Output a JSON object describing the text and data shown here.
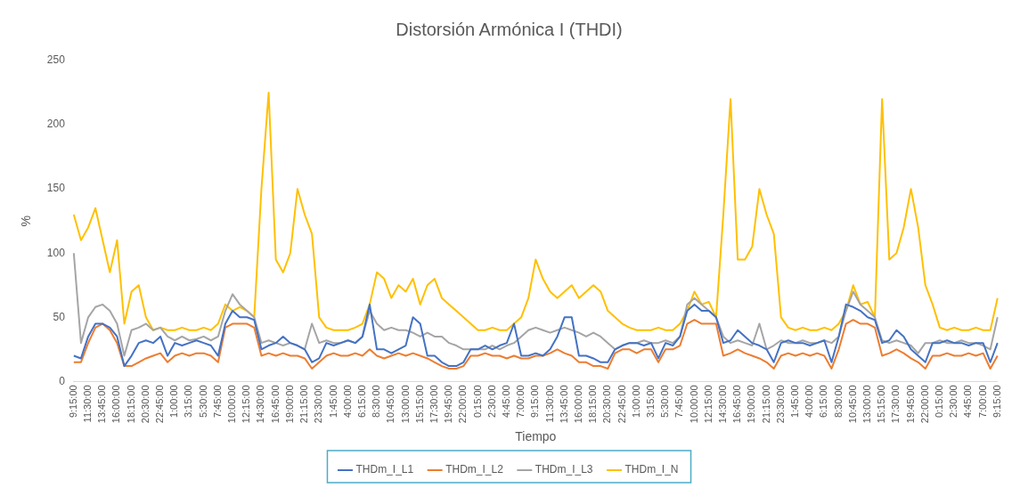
{
  "chart_data": {
    "type": "line",
    "title": "Distorsión Armónica I (THDI)",
    "xlabel": "Tiempo",
    "ylabel": "%",
    "categories": [
      "9:15:00",
      null,
      "11:30:00",
      null,
      "13:45:00",
      null,
      "16:00:00",
      null,
      "18:15:00",
      null,
      "20:30:00",
      null,
      "22:45:00",
      null,
      "1:00:00",
      null,
      "3:15:00",
      null,
      "5:30:00",
      null,
      "7:45:00",
      null,
      "10:00:00",
      null,
      "12:15:00",
      null,
      "14:30:00",
      null,
      "16:45:00",
      null,
      "19:00:00",
      null,
      "21:15:00",
      null,
      "23:30:00",
      null,
      "1:45:00",
      null,
      "4:00:00",
      null,
      "6:15:00",
      null,
      "8:30:00",
      null,
      "10:45:00",
      null,
      "13:00:00",
      null,
      "15:15:00",
      null,
      "17:30:00",
      null,
      "19:45:00",
      null,
      "22:00:00",
      null,
      "0:15:00",
      null,
      "2:30:00",
      null,
      "4:45:00",
      null,
      "7:00:00",
      null,
      "9:15:00",
      null,
      "11:30:00",
      null,
      "13:45:00",
      null,
      "16:00:00",
      null,
      "18:15:00",
      null,
      "20:30:00",
      null,
      "22:45:00",
      null,
      "1:00:00",
      null,
      "3:15:00",
      null,
      "5:30:00",
      null,
      "7:45:00",
      null,
      "10:00:00",
      null,
      "12:15:00",
      null,
      "14:30:00",
      null,
      "16:45:00",
      null,
      "19:00:00",
      null,
      "21:15:00",
      null,
      "23:30:00",
      null,
      "1:45:00",
      null,
      "4:00:00",
      null,
      "6:15:00",
      null,
      "8:30:00",
      null,
      "10:45:00",
      null,
      "13:00:00",
      null,
      "15:15:00",
      null,
      "17:30:00",
      null,
      "19:45:00",
      null,
      "22:00:00",
      null,
      "0:15:00",
      null,
      "2:30:00",
      null,
      "4:45:00",
      null,
      "7:00:00",
      null,
      "9:15:00"
    ],
    "series": [
      {
        "name": "THDm_I_L1",
        "color": "#4472c4",
        "values": [
          20,
          18,
          35,
          45,
          45,
          42,
          35,
          12,
          20,
          30,
          32,
          30,
          35,
          20,
          30,
          28,
          30,
          32,
          30,
          28,
          20,
          45,
          55,
          50,
          50,
          48,
          25,
          28,
          30,
          35,
          30,
          28,
          25,
          15,
          18,
          30,
          28,
          30,
          32,
          30,
          35,
          60,
          25,
          25,
          22,
          25,
          28,
          50,
          45,
          20,
          20,
          15,
          12,
          12,
          15,
          25,
          25,
          28,
          25,
          28,
          30,
          45,
          20,
          20,
          22,
          20,
          25,
          35,
          50,
          50,
          20,
          20,
          18,
          15,
          15,
          25,
          28,
          30,
          30,
          28,
          30,
          18,
          30,
          28,
          35,
          55,
          60,
          55,
          55,
          50,
          30,
          32,
          40,
          35,
          30,
          28,
          25,
          15,
          30,
          32,
          30,
          30,
          28,
          30,
          32,
          15,
          35,
          60,
          58,
          55,
          50,
          48,
          30,
          32,
          40,
          35,
          25,
          20,
          15,
          30,
          30,
          32,
          30,
          30,
          28,
          30,
          30,
          15,
          30
        ]
      },
      {
        "name": "THDm_I_L2",
        "color": "#ed7d31",
        "values": [
          15,
          15,
          30,
          42,
          45,
          40,
          30,
          12,
          12,
          15,
          18,
          20,
          22,
          15,
          20,
          22,
          20,
          22,
          22,
          20,
          15,
          42,
          45,
          45,
          45,
          42,
          20,
          22,
          20,
          22,
          20,
          20,
          18,
          10,
          15,
          20,
          22,
          20,
          20,
          22,
          20,
          25,
          20,
          18,
          20,
          22,
          20,
          22,
          20,
          18,
          15,
          12,
          10,
          10,
          12,
          20,
          20,
          22,
          20,
          20,
          18,
          20,
          18,
          18,
          20,
          20,
          22,
          25,
          22,
          20,
          15,
          15,
          12,
          12,
          10,
          22,
          25,
          25,
          22,
          25,
          25,
          15,
          25,
          25,
          28,
          45,
          48,
          45,
          45,
          45,
          20,
          22,
          25,
          22,
          20,
          18,
          15,
          10,
          20,
          22,
          20,
          22,
          20,
          22,
          20,
          10,
          25,
          45,
          48,
          45,
          45,
          42,
          20,
          22,
          25,
          22,
          18,
          15,
          10,
          20,
          20,
          22,
          20,
          20,
          22,
          20,
          22,
          10,
          20
        ]
      },
      {
        "name": "THDm_I_L3",
        "color": "#a5a5a5",
        "values": [
          100,
          30,
          50,
          58,
          60,
          55,
          45,
          20,
          40,
          42,
          45,
          40,
          42,
          35,
          32,
          35,
          32,
          33,
          35,
          32,
          35,
          55,
          68,
          60,
          55,
          50,
          30,
          32,
          30,
          28,
          30,
          28,
          25,
          45,
          30,
          32,
          30,
          30,
          32,
          30,
          35,
          55,
          45,
          40,
          42,
          40,
          40,
          38,
          35,
          38,
          35,
          35,
          30,
          28,
          25,
          25,
          25,
          25,
          28,
          25,
          28,
          30,
          35,
          40,
          42,
          40,
          38,
          40,
          42,
          40,
          38,
          35,
          38,
          35,
          30,
          25,
          28,
          30,
          30,
          32,
          30,
          30,
          32,
          30,
          35,
          60,
          65,
          60,
          55,
          50,
          35,
          30,
          32,
          30,
          28,
          45,
          25,
          28,
          32,
          30,
          30,
          32,
          30,
          30,
          32,
          30,
          35,
          55,
          70,
          60,
          55,
          50,
          32,
          30,
          32,
          30,
          28,
          22,
          30,
          30,
          32,
          30,
          30,
          32,
          30,
          30,
          28,
          25,
          50
        ]
      },
      {
        "name": "THDm_I_N",
        "color": "#ffc000",
        "values": [
          130,
          110,
          120,
          135,
          110,
          85,
          110,
          45,
          70,
          75,
          50,
          40,
          42,
          40,
          40,
          42,
          40,
          40,
          42,
          40,
          45,
          60,
          55,
          58,
          55,
          50,
          150,
          225,
          95,
          85,
          100,
          150,
          130,
          115,
          50,
          42,
          40,
          40,
          40,
          42,
          45,
          60,
          85,
          80,
          65,
          75,
          70,
          80,
          60,
          75,
          80,
          65,
          60,
          55,
          50,
          45,
          40,
          40,
          42,
          40,
          40,
          45,
          50,
          65,
          95,
          80,
          70,
          65,
          70,
          75,
          65,
          70,
          75,
          70,
          55,
          50,
          45,
          42,
          40,
          40,
          40,
          42,
          40,
          40,
          45,
          55,
          70,
          60,
          62,
          50,
          130,
          220,
          95,
          95,
          105,
          150,
          130,
          115,
          50,
          42,
          40,
          42,
          40,
          40,
          42,
          40,
          45,
          55,
          75,
          60,
          62,
          50,
          220,
          95,
          100,
          120,
          150,
          120,
          75,
          60,
          42,
          40,
          42,
          40,
          40,
          42,
          40,
          40,
          65
        ]
      }
    ],
    "ylim": [
      0,
      250
    ],
    "yticks": [
      0,
      50,
      100,
      150,
      200,
      250
    ],
    "grid": false,
    "legend": "bottom",
    "marker": "none",
    "line_style": "solid"
  }
}
